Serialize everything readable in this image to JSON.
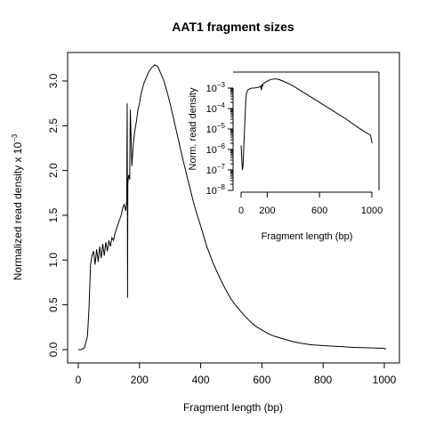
{
  "chart_data": [
    {
      "type": "line",
      "title": "AAT1 fragment sizes",
      "xlabel": "Fragment length (bp)",
      "ylabel": "Normalized read density x 10",
      "ylabel_exponent": "−3",
      "xlim": [
        0,
        1000
      ],
      "ylim": [
        0,
        3.2
      ],
      "xticks": [
        "0",
        "200",
        "400",
        "600",
        "800",
        "1000"
      ],
      "xtick_values": [
        0,
        200,
        400,
        600,
        800,
        1000
      ],
      "yticks": [
        "0.0",
        "0.5",
        "1.0",
        "1.5",
        "2.0",
        "2.5",
        "3.0"
      ],
      "ytick_values": [
        0,
        0.5,
        1,
        1.5,
        2,
        2.5,
        3
      ],
      "grid": false,
      "series": [
        {
          "x": [
            0,
            10,
            20,
            30,
            35,
            40,
            45,
            50,
            55,
            60,
            65,
            70,
            75,
            80,
            85,
            90,
            95,
            100,
            105,
            110,
            115,
            120,
            125,
            130,
            135,
            140,
            145,
            150,
            155,
            158,
            160,
            161,
            162,
            163,
            165,
            168,
            170,
            175,
            180,
            185,
            190,
            195,
            200,
            205,
            210,
            215,
            220,
            225,
            230,
            240,
            250,
            255,
            260,
            265,
            270,
            280,
            290,
            300,
            320,
            340,
            360,
            380,
            400,
            420,
            440,
            460,
            480,
            500,
            520,
            540,
            560,
            580,
            600,
            620,
            640,
            660,
            680,
            700,
            720,
            740,
            760,
            780,
            800,
            850,
            900,
            950,
            1000,
            1005
          ],
          "y": [
            0,
            0,
            0.02,
            0.15,
            0.45,
            0.95,
            1.05,
            1.1,
            0.95,
            1.12,
            0.98,
            1.15,
            1.02,
            1.18,
            1.05,
            1.2,
            1.1,
            1.22,
            1.15,
            1.25,
            1.22,
            1.3,
            1.35,
            1.4,
            1.45,
            1.5,
            1.58,
            1.62,
            1.55,
            1.65,
            2.75,
            0.58,
            1.85,
            1.9,
            1.95,
            1.9,
            2.68,
            2.05,
            2.3,
            2.45,
            2.55,
            2.68,
            2.75,
            2.85,
            2.92,
            2.98,
            3.02,
            3.06,
            3.1,
            3.15,
            3.18,
            3.17,
            3.16,
            3.12,
            3.08,
            3.0,
            2.88,
            2.75,
            2.45,
            2.15,
            1.87,
            1.6,
            1.38,
            1.15,
            0.97,
            0.82,
            0.68,
            0.56,
            0.47,
            0.39,
            0.32,
            0.26,
            0.22,
            0.18,
            0.15,
            0.13,
            0.11,
            0.09,
            0.075,
            0.065,
            0.055,
            0.05,
            0.045,
            0.035,
            0.025,
            0.02,
            0.015,
            0.0
          ]
        }
      ]
    },
    {
      "type": "line",
      "title": "",
      "xlabel": "Fragment length (bp)",
      "ylabel": "Norm. read density",
      "xlim": [
        0,
        1000
      ],
      "ylim_log10": [
        -8,
        -2.5
      ],
      "yscale": "log",
      "xticks": [
        "0",
        "200",
        "600",
        "1000"
      ],
      "xtick_values": [
        0,
        200,
        600,
        1000
      ],
      "yticks_exponent": [
        "−8",
        "−7",
        "−6",
        "−5",
        "−4",
        "−3"
      ],
      "ytick_log_values": [
        -8,
        -7,
        -6,
        -5,
        -4,
        -3
      ],
      "ytick_base": "10",
      "grid": false,
      "series": [
        {
          "x": [
            0,
            5,
            10,
            15,
            20,
            25,
            30,
            35,
            40,
            50,
            60,
            80,
            100,
            120,
            140,
            150,
            155,
            160,
            165,
            170,
            190,
            220,
            250,
            280,
            320,
            400,
            500,
            600,
            700,
            800,
            900,
            960,
            990,
            1000,
            1005
          ],
          "y_log10": [
            -5.8,
            -6.4,
            -7.0,
            -6.8,
            -6.0,
            -5.2,
            -4.5,
            -3.8,
            -3.3,
            -3.1,
            -3.05,
            -3.0,
            -3.0,
            -2.98,
            -2.95,
            -2.9,
            -3.1,
            -2.85,
            -2.9,
            -2.78,
            -2.7,
            -2.6,
            -2.55,
            -2.56,
            -2.65,
            -2.9,
            -3.3,
            -3.7,
            -4.1,
            -4.5,
            -4.95,
            -5.2,
            -5.3,
            -5.65,
            -5.7
          ]
        }
      ]
    }
  ]
}
